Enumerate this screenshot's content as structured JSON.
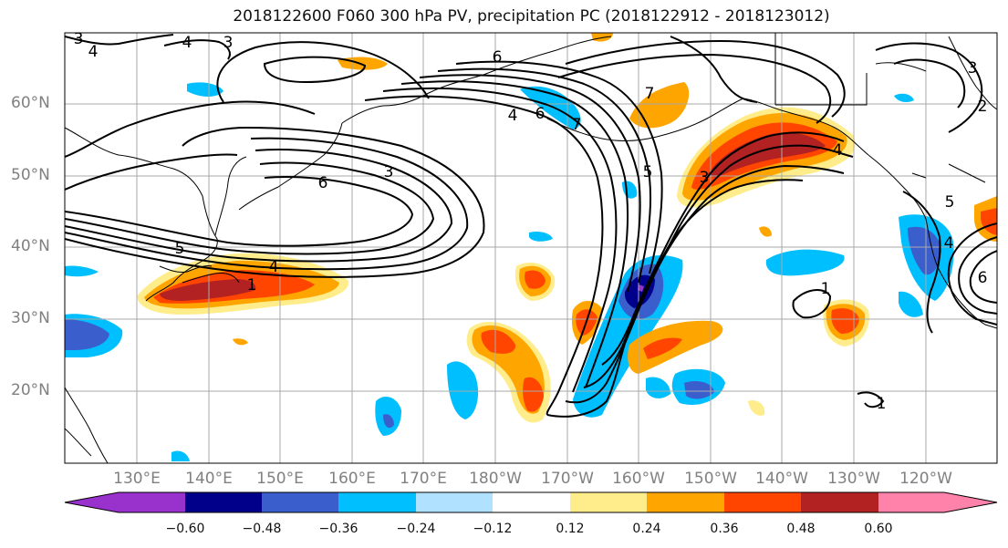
{
  "title": "2018122600 F060 300 hPa PV, precipitation PC (2018122912 - 2018123012)",
  "lat_labels": [
    "60°N",
    "50°N",
    "40°N",
    "30°N",
    "20°N"
  ],
  "lon_labels": [
    "130°E",
    "140°E",
    "150°E",
    "160°E",
    "170°E",
    "180°W",
    "170°W",
    "160°W",
    "150°W",
    "140°W",
    "130°W",
    "120°W"
  ],
  "contour_labels": [
    "4",
    "4",
    "3",
    "3",
    "5",
    "6",
    "7",
    "6",
    "7",
    "4",
    "3",
    "6",
    "5",
    "4",
    "1",
    "3",
    "4",
    "3",
    "6",
    "5",
    "1",
    "2",
    "1",
    "4"
  ],
  "colorbar": {
    "tick_labels": [
      "−0.60",
      "−0.48",
      "−0.36",
      "−0.24",
      "−0.12",
      "0.12",
      "0.24",
      "0.36",
      "0.48",
      "0.60"
    ],
    "colors": [
      "#9932CC",
      "#00008B",
      "#3A5FCD",
      "#00BFFF",
      "#B0E2FF",
      "#FFFFFF",
      "#FFEC8B",
      "#FFA500",
      "#FF4500",
      "#B22222",
      "#FF82AB"
    ]
  },
  "map_colors": {
    "contour": "#000000",
    "grid": "#a9a9a9",
    "coast": "#000000"
  }
}
